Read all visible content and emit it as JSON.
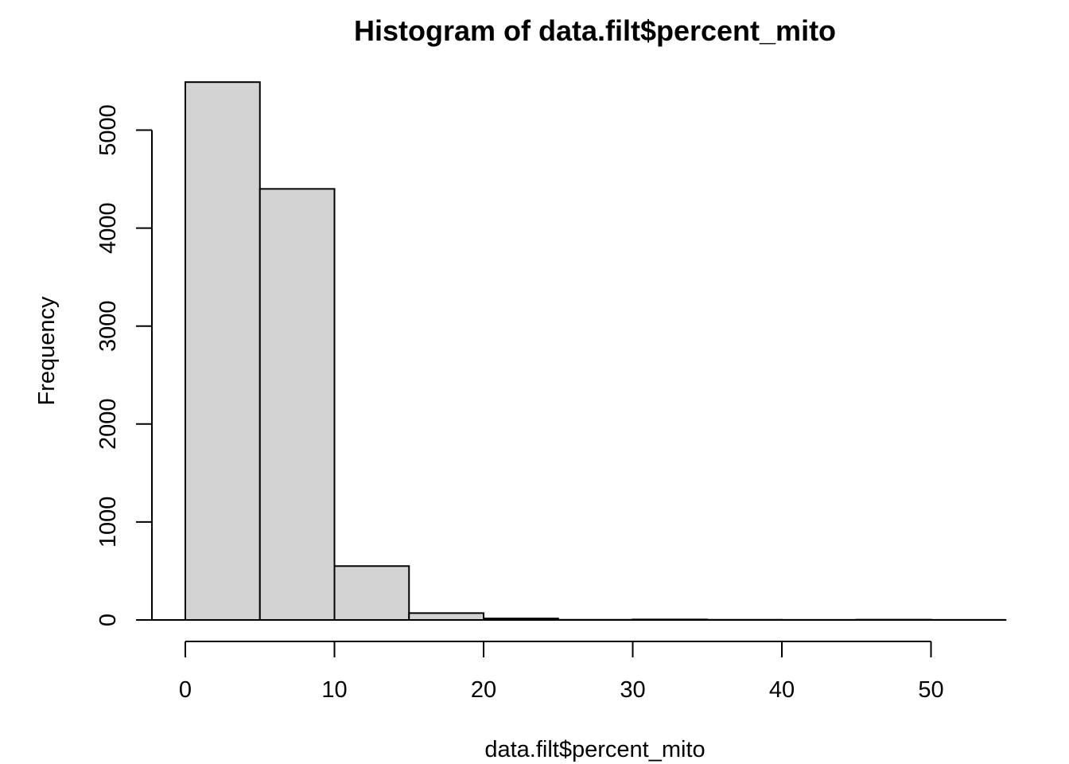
{
  "chart_data": {
    "type": "bar",
    "title": "Histogram of data.filt$percent_mito",
    "xlabel": "data.filt$percent_mito",
    "ylabel": "Frequency",
    "bins": [
      {
        "start": 0,
        "end": 5,
        "count": 5490
      },
      {
        "start": 5,
        "end": 10,
        "count": 4400
      },
      {
        "start": 10,
        "end": 15,
        "count": 550
      },
      {
        "start": 15,
        "end": 20,
        "count": 70
      },
      {
        "start": 20,
        "end": 25,
        "count": 15
      },
      {
        "start": 25,
        "end": 30,
        "count": 2
      },
      {
        "start": 30,
        "end": 35,
        "count": 5
      },
      {
        "start": 35,
        "end": 40,
        "count": 2
      },
      {
        "start": 40,
        "end": 45,
        "count": 1
      },
      {
        "start": 45,
        "end": 50,
        "count": 3
      },
      {
        "start": 50,
        "end": 55,
        "count": 1
      }
    ],
    "xlim": [
      0,
      55
    ],
    "ylim": [
      0,
      5490
    ],
    "xticks": [
      0,
      10,
      20,
      30,
      40,
      50
    ],
    "xtick_labels": [
      "0",
      "10",
      "20",
      "30",
      "40",
      "50"
    ],
    "yticks": [
      0,
      1000,
      2000,
      3000,
      4000,
      5000
    ],
    "ytick_labels": [
      "0",
      "1000",
      "2000",
      "3000",
      "4000",
      "5000"
    ],
    "colors": {
      "bar_fill": "#d3d3d3",
      "bar_stroke": "#000000"
    }
  }
}
